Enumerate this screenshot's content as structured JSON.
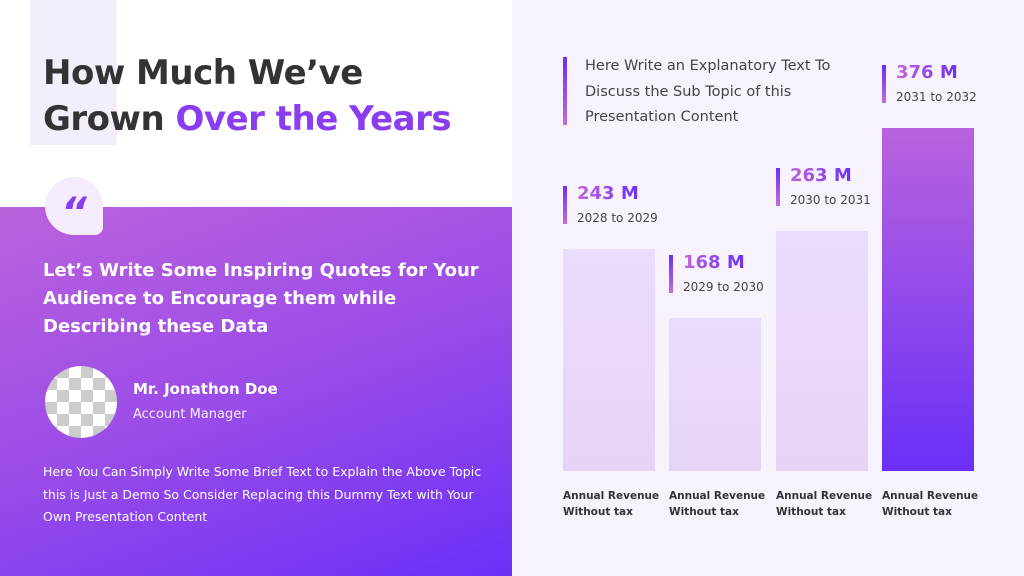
{
  "title": {
    "line1": "How Much We’ve",
    "line2_plain": "Grown ",
    "line2_highlight": "Over the Years"
  },
  "quote_icon": "quote-mark-icon",
  "quote": "Let’s Write Some Inspiring Quotes for Your Audience to Encourage them while Describing these Data",
  "author": {
    "name": "Mr. Jonathon Doe",
    "role": "Account Manager",
    "avatar": "placeholder-image"
  },
  "body_text": "Here You Can Simply Write Some Brief Text to Explain the Above Topic this is Just a Demo So Consider Replacing this Dummy Text with Your Own Presentation Content",
  "explanatory_text": "Here Write an Explanatory Text To Discuss the Sub Topic of this Presentation Content",
  "colors": {
    "accent": "#8a3cf0",
    "gradient_start": "#bb62dc",
    "gradient_end": "#6a2ff8",
    "bar_light": "#e8dafb"
  },
  "chart_data": {
    "type": "bar",
    "categories": [
      "Annual Revenue Without tax",
      "Annual Revenue Without tax",
      "Annual Revenue Without tax",
      "Annual Revenue Without tax"
    ],
    "periods": [
      "2028 to 2029",
      "2029 to 2030",
      "2030 to 2031",
      "2031 to 2032"
    ],
    "values": [
      243,
      168,
      263,
      376
    ],
    "value_labels": [
      "243 M",
      "168 M",
      "263 M",
      "376 M"
    ],
    "unit": "M",
    "highlighted_index": 3,
    "grid": false
  }
}
